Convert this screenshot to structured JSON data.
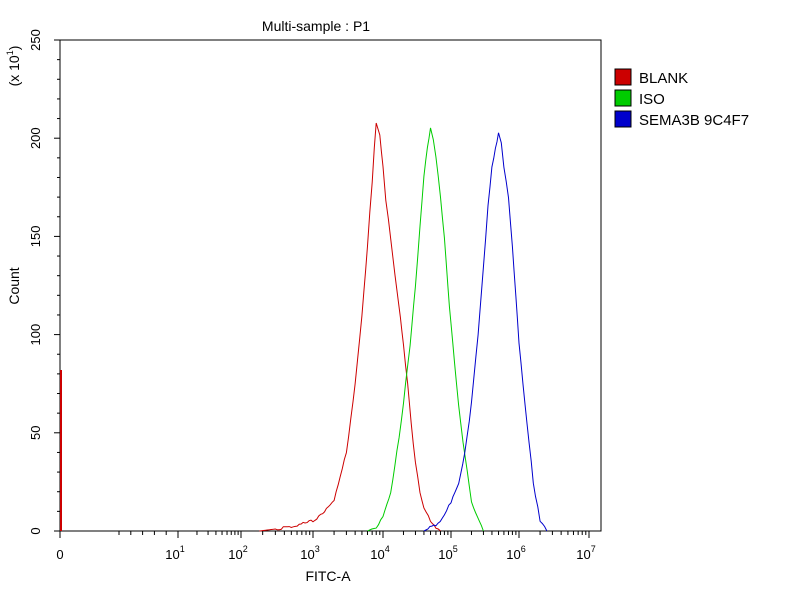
{
  "chart_data": {
    "type": "line",
    "title": "Multi-sample : P1",
    "xlabel": "FITC-A",
    "ylabel": "Count",
    "y_multiplier": {
      "base": "(x 10",
      "exponent": "1",
      "close": ")"
    },
    "x_scale": "biexponential",
    "xlim": [
      -1,
      10000000
    ],
    "ylim": [
      0,
      250
    ],
    "y_ticks": [
      0,
      50,
      100,
      150,
      200,
      250
    ],
    "x_ticks": [
      {
        "value": 0,
        "base": "0",
        "exp": ""
      },
      {
        "value": 10,
        "base": "10",
        "exp": "1"
      },
      {
        "value": 100,
        "base": "10",
        "exp": "2"
      },
      {
        "value": 1000,
        "base": "10",
        "exp": "3"
      },
      {
        "value": 10000,
        "base": "10",
        "exp": "4"
      },
      {
        "value": 100000,
        "base": "10",
        "exp": "5"
      },
      {
        "value": 1000000,
        "base": "10",
        "exp": "6"
      },
      {
        "value": 10000000,
        "base": "10",
        "exp": "7"
      }
    ],
    "grid": false,
    "legend_position": "right",
    "series": [
      {
        "name": "BLANK",
        "color": "#cc0000",
        "x": [
          180,
          300,
          500,
          1000,
          2000,
          3000,
          4000,
          5000,
          6000,
          7000,
          7500,
          8000,
          9000,
          10000,
          11000,
          12000,
          13000,
          15000,
          18000,
          20000,
          23000,
          26000,
          30000,
          35000,
          40000,
          50000,
          60000,
          70000
        ],
        "y": [
          0,
          1,
          2,
          5,
          15,
          40,
          75,
          110,
          145,
          178,
          195,
          207,
          202,
          185,
          168,
          158,
          148,
          130,
          108,
          95,
          75,
          55,
          35,
          20,
          12,
          5,
          2,
          0
        ]
      },
      {
        "name": "ISO",
        "color": "#00cc00",
        "x": [
          6000,
          8000,
          10000,
          13000,
          16000,
          20000,
          25000,
          30000,
          35000,
          40000,
          45000,
          50000,
          55000,
          60000,
          70000,
          80000,
          90000,
          100000,
          120000,
          150000,
          200000,
          300000
        ],
        "y": [
          0,
          2,
          8,
          20,
          40,
          65,
          95,
          125,
          155,
          180,
          196,
          205,
          200,
          190,
          170,
          150,
          125,
          105,
          75,
          45,
          15,
          0
        ]
      },
      {
        "name": "SEMA3B 9C4F7",
        "color": "#0000cc",
        "x": [
          40000,
          60000,
          80000,
          100000,
          130000,
          160000,
          200000,
          250000,
          300000,
          350000,
          400000,
          450000,
          500000,
          550000,
          600000,
          700000,
          800000,
          900000,
          1000000,
          1300000,
          1600000,
          2000000,
          2500000
        ],
        "y": [
          0,
          3,
          8,
          15,
          25,
          40,
          65,
          100,
          135,
          165,
          185,
          195,
          202,
          198,
          185,
          170,
          145,
          120,
          95,
          55,
          25,
          5,
          0
        ]
      }
    ],
    "blank_near_zero_count": 82
  }
}
